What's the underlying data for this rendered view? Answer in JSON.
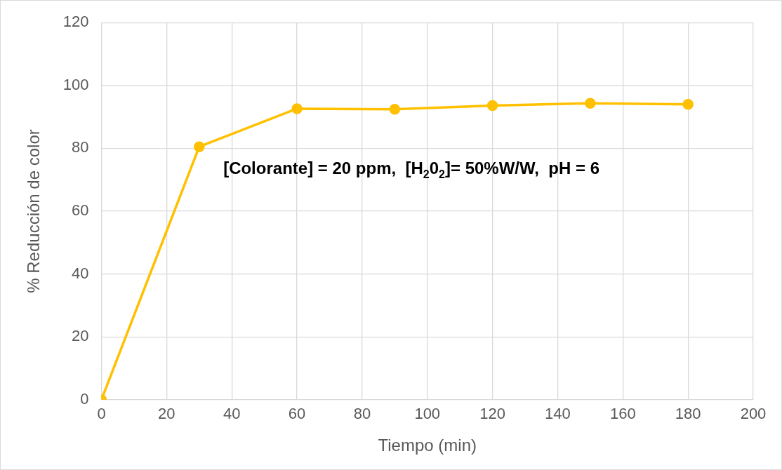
{
  "chart_data": {
    "type": "line",
    "xlabel": "Tiempo (min)",
    "ylabel": "% Reducción de color",
    "x": [
      0,
      30,
      60,
      90,
      120,
      150,
      180
    ],
    "series": [
      {
        "color": "#ffc000",
        "values": [
          0,
          80.5,
          92.6,
          92.4,
          93.6,
          94.3,
          94.0
        ]
      }
    ],
    "xlim": [
      0,
      200
    ],
    "xticks": [
      0,
      20,
      40,
      60,
      80,
      100,
      120,
      140,
      160,
      180,
      200
    ],
    "ylim": [
      0,
      120
    ],
    "yticks": [
      0,
      20,
      40,
      60,
      80,
      100,
      120
    ],
    "grid": true,
    "legend": false,
    "marker": "circle",
    "line_style": "solid",
    "annotations": [
      "[Colorante] = 20 ppm,  [H$_{2}$0$_{2}$]= 50%W/W,  pH = 6"
    ]
  }
}
